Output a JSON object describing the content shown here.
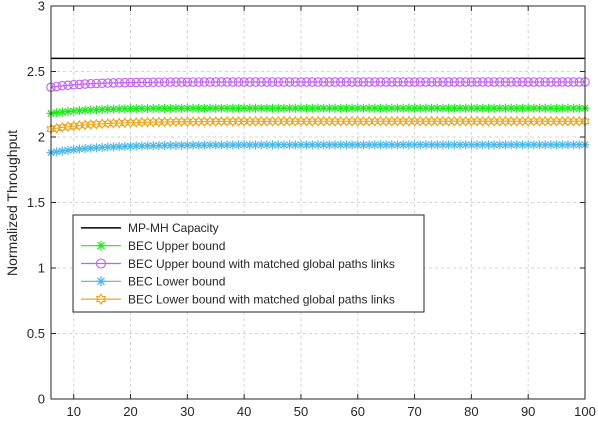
{
  "chart_data": {
    "type": "line",
    "title": "",
    "xlabel": "",
    "ylabel": "Normalized Throughput",
    "xlim": [
      6,
      100
    ],
    "ylim": [
      0,
      3
    ],
    "xticks": [
      10,
      20,
      30,
      40,
      50,
      60,
      70,
      80,
      90,
      100
    ],
    "yticks": [
      0,
      0.5,
      1,
      1.5,
      2,
      2.5,
      3
    ],
    "ytick_labels": [
      "0",
      "0.5",
      "1",
      "1.5",
      "2",
      "2.5",
      "3"
    ],
    "grid": true,
    "legend_position": "lower-left",
    "x": [
      6,
      100
    ],
    "series": [
      {
        "name": "MP-MH Capacity",
        "color": "#000000",
        "marker": "none",
        "x": [
          6,
          100
        ],
        "values": [
          2.6,
          2.6
        ]
      },
      {
        "name": "BEC Upper bound",
        "color": "#1ee81e",
        "marker": "asterisk",
        "start": 2.18,
        "end": 2.22,
        "saturation_x": 25,
        "x": [
          6,
          8,
          10,
          15,
          20,
          30,
          50,
          100
        ],
        "values": [
          2.18,
          2.19,
          2.2,
          2.21,
          2.215,
          2.22,
          2.22,
          2.22
        ]
      },
      {
        "name": "BEC Upper bound with matched global paths links",
        "color": "#c060f0",
        "marker": "circle",
        "start": 2.38,
        "end": 2.42,
        "saturation_x": 25,
        "x": [
          6,
          8,
          10,
          15,
          20,
          30,
          50,
          100
        ],
        "values": [
          2.38,
          2.39,
          2.4,
          2.41,
          2.415,
          2.42,
          2.42,
          2.42
        ]
      },
      {
        "name": "BEC Lower bound",
        "color": "#4cb8e6",
        "marker": "asterisk",
        "start": 1.88,
        "end": 1.94,
        "saturation_x": 30,
        "x": [
          6,
          8,
          10,
          15,
          20,
          30,
          50,
          100
        ],
        "values": [
          1.88,
          1.9,
          1.91,
          1.925,
          1.93,
          1.935,
          1.94,
          1.94
        ]
      },
      {
        "name": "BEC Lower bound with matched global paths links",
        "color": "#e8a820",
        "marker": "hexagram",
        "start": 2.06,
        "end": 2.12,
        "saturation_x": 30,
        "x": [
          6,
          8,
          10,
          15,
          20,
          30,
          50,
          100
        ],
        "values": [
          2.06,
          2.08,
          2.09,
          2.105,
          2.11,
          2.115,
          2.12,
          2.12
        ]
      }
    ]
  }
}
